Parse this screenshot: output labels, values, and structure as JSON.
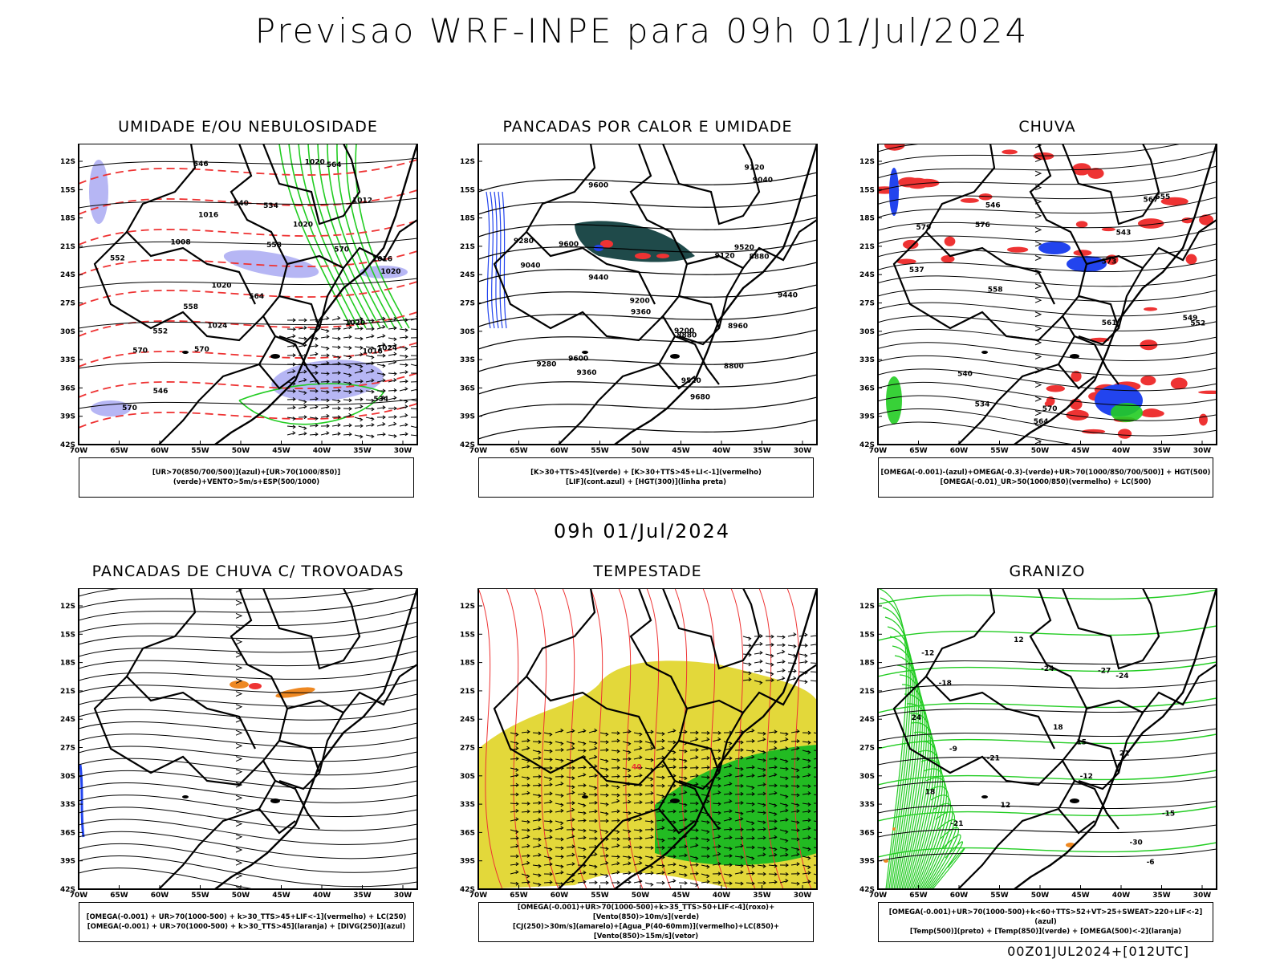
{
  "title": "Previsao WRF-INPE  para 09h 01/Jul/2024",
  "mid_date": "09h 01/Jul/2024",
  "footer": "00Z01JUL2024+[012UTC]",
  "lat_ticks": [
    "12S",
    "15S",
    "18S",
    "21S",
    "24S",
    "27S",
    "30S",
    "33S",
    "36S",
    "39S",
    "42S"
  ],
  "lon_ticks": [
    "70W",
    "65W",
    "60W",
    "55W",
    "50W",
    "45W",
    "40W",
    "35W",
    "30W"
  ],
  "colors": {
    "humidity_blue": "#a9a9f2",
    "green_contour": "#22cc22",
    "red_contour": "#ee3333",
    "dark_teal": "#1f4a4a",
    "storm_yellow": "#e3d83a",
    "storm_green": "#22bb22",
    "blue": "#2244ee",
    "orange": "#ee8822"
  },
  "panels": [
    {
      "id": "umidade",
      "title": "UMIDADE E/OU NEBULOSIDADE",
      "legend": [
        "[UR>70(850/700/500)](azul)+[UR>70(1000/850)](verde)+VENTO>5m/s+ESP(500/1000)"
      ],
      "labels": [
        "1016",
        "1016",
        "1020",
        "1020",
        "1020",
        "1024",
        "1024",
        "1020",
        "1016",
        "1012",
        "1008",
        "1020",
        "570",
        "570",
        "570",
        "564",
        "558",
        "552",
        "546",
        "540",
        "534",
        "534",
        "546",
        "552",
        "558",
        "564",
        "570"
      ]
    },
    {
      "id": "pancadas-calor",
      "title": "PANCADAS POR CALOR E UMIDADE",
      "legend": [
        "[K>30+TTS>45](verde) + [K>30+TTS>45+LI<-1](vermelho)",
        "[LIF](cont.azul) + [HGT(300)](linha preta)"
      ],
      "labels": [
        "9680",
        "9600",
        "9600",
        "9600",
        "9520",
        "9520",
        "9440",
        "9440",
        "9360",
        "9360",
        "9280",
        "9280",
        "9200",
        "9200",
        "9120",
        "9120",
        "9040",
        "9040",
        "8960",
        "8880",
        "8800",
        "8880"
      ]
    },
    {
      "id": "chuva",
      "title": "CHUVA",
      "legend": [
        "[OMEGA(-0.001)-(azul)+OMEGA(-0.3)-(verde)+UR>70(1000/850/700/500)] + HGT(500)",
        "[OMEGA(-0.01)_UR>50(1000/850)(vermelho) + LC(500)"
      ],
      "labels": [
        "579",
        "576",
        "573",
        "570",
        "567",
        "564",
        "561",
        "558",
        "555",
        "552",
        "549",
        "546",
        "543",
        "540",
        "537",
        "534"
      ]
    },
    {
      "id": "pancadas-trovoadas",
      "title": "PANCADAS DE CHUVA C/ TROVOADAS",
      "legend": [
        "[OMEGA(-0.001) + UR>70(1000-500) + k>30_TTS>45+LIF<-1](vermelho) + LC(250)",
        "[OMEGA(-0.001) + UR>70(1000-500) + k>30_TTS>45](laranja) + [DIVG(250)](azul)"
      ],
      "labels": []
    },
    {
      "id": "tempestade",
      "title": "TEMPESTADE",
      "legend": [
        "[OMEGA(-0.001)+UR>70(1000-500)+k>35_TTS>50+LIF<-4](roxo)+[Vento(850)>10m/s](verde)",
        "[CJ(250)>30m/s](amarelo)+[Agua_P(40-60mm)](vermelho)+LC(850)+[Vento(850)>15m/s](vetor)"
      ],
      "labels": [
        "40"
      ]
    },
    {
      "id": "granizo",
      "title": "GRANIZO",
      "legend": [
        "[OMEGA(-0.001)+UR>70(1000-500)+k<60+TTS>52+VT>25+SWEAT>220+LIF<-2](azul)",
        "[Temp(500)](preto) + [Temp(850)](verde) + [OMEGA(500)<-2](laranja)"
      ],
      "labels": [
        "-6",
        "-9",
        "-12",
        "-12",
        "-15",
        "-18",
        "-21",
        "-21",
        "-24",
        "-24",
        "-27",
        "-30",
        "12",
        "12",
        "15",
        "18",
        "21",
        "18",
        "24"
      ]
    }
  ]
}
